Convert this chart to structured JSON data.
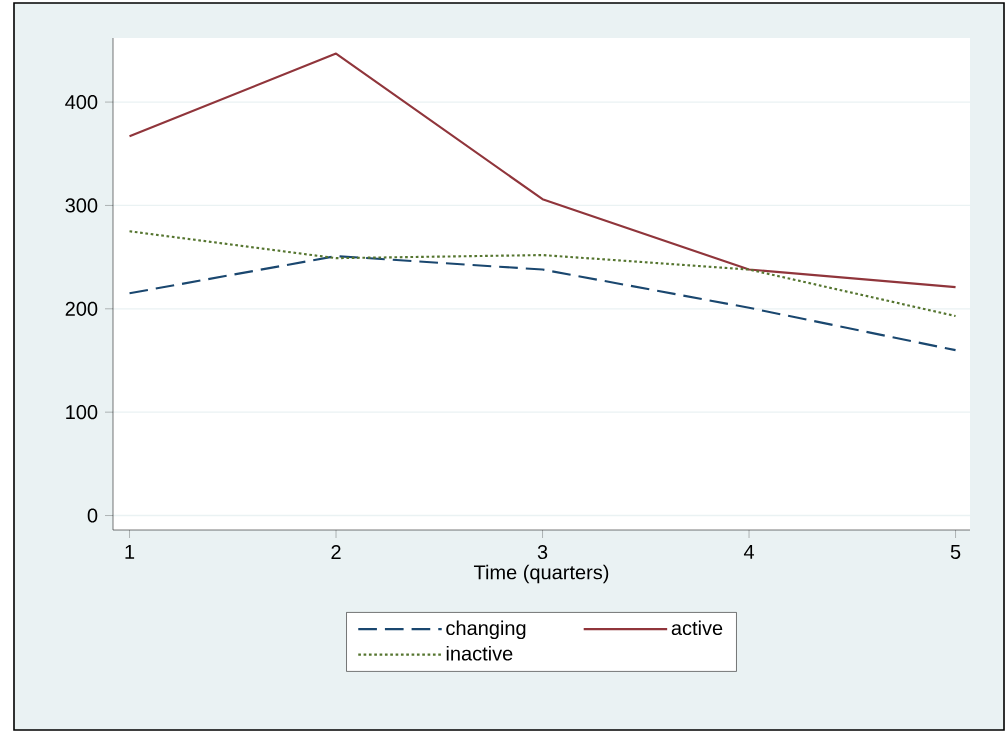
{
  "chart_data": {
    "type": "line",
    "xlabel": "Time (quarters)",
    "x": [
      1,
      2,
      3,
      4,
      5
    ],
    "series": [
      {
        "name": "changing",
        "color": "#1a476f",
        "line_style": "dashed",
        "values": [
          215,
          251,
          238,
          201,
          160
        ]
      },
      {
        "name": "active",
        "color": "#90353b",
        "line_style": "solid",
        "values": [
          367,
          447,
          306,
          238,
          221
        ]
      },
      {
        "name": "inactive",
        "color": "#55752f",
        "line_style": "dotted",
        "values": [
          275,
          249,
          252,
          238,
          193
        ]
      }
    ],
    "xlim": [
      0.92,
      5.07
    ],
    "ylim": [
      -14,
      462
    ],
    "xticks": [
      1,
      2,
      3,
      4,
      5
    ],
    "yticks": [
      0,
      100,
      200,
      300,
      400
    ],
    "grid": "y",
    "legend": "bottom"
  }
}
